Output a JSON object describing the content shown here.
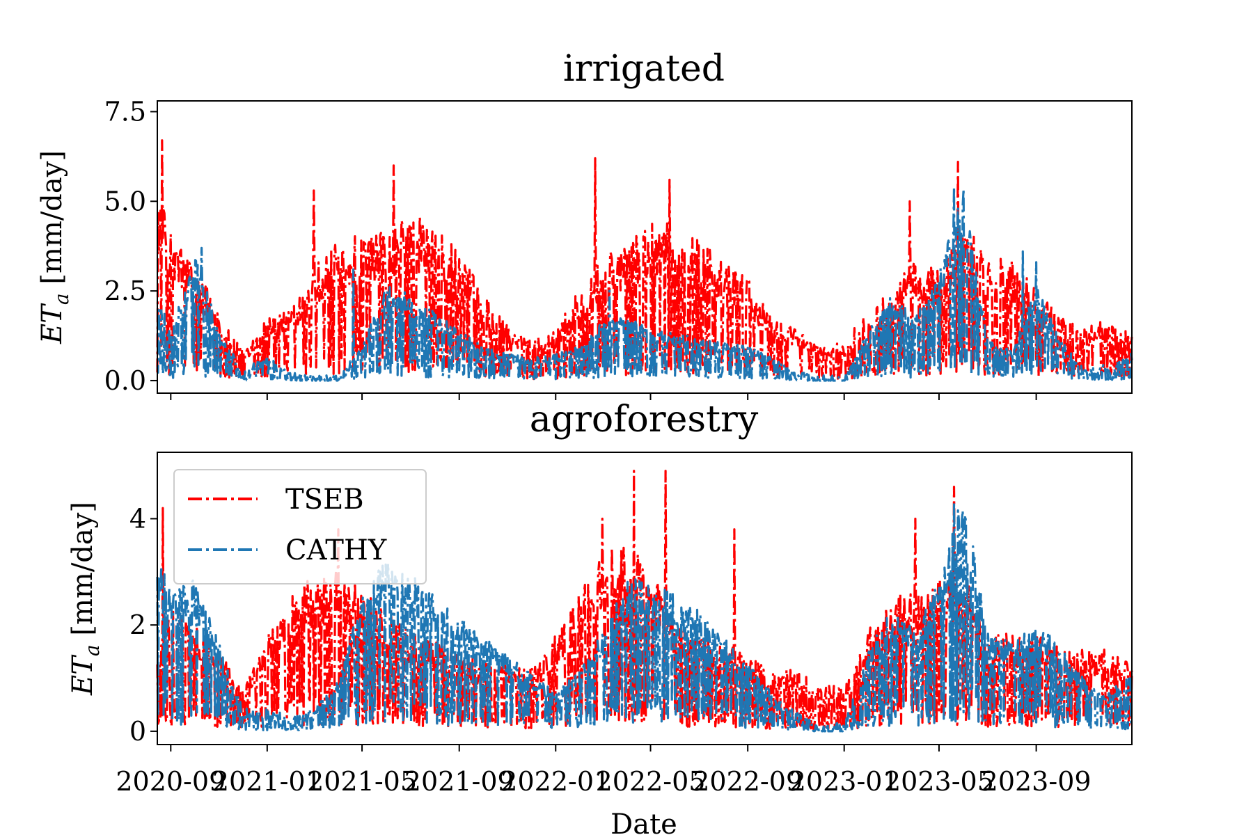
{
  "x_tick_labels": [
    "2020-09",
    "2021-01",
    "2021-05",
    "2021-09",
    "2022-01",
    "2022-05",
    "2022-09",
    "2023-01",
    "2023-05",
    "2023-09"
  ],
  "colors": {
    "TSEB": "#ff0000",
    "CATHY": "#1f77b4"
  },
  "chart_data": [
    {
      "type": "line",
      "title": "irrigated",
      "xlabel": "",
      "ylabel": "ET_a [mm/day]",
      "ylabel_main": "ET",
      "ylabel_sub": "a",
      "ylabel_rest": " [mm/day]",
      "x_range": [
        "2020-08-15",
        "2023-12-31"
      ],
      "ylim": [
        -0.35,
        7.8
      ],
      "yticks": [
        0.0,
        2.5,
        5.0,
        7.5
      ],
      "ytick_labels": [
        "0.0",
        "2.5",
        "5.0",
        "7.5"
      ],
      "grid": false,
      "legend": "none",
      "series": [
        {
          "name": "TSEB",
          "x": [
            "2020-08-15",
            "2020-09-01",
            "2020-10-01",
            "2020-11-01",
            "2020-12-01",
            "2021-01-01",
            "2021-02-01",
            "2021-03-01",
            "2021-04-01",
            "2021-05-01",
            "2021-06-01",
            "2021-07-01",
            "2021-08-01",
            "2021-09-01",
            "2021-10-01",
            "2021-11-01",
            "2021-12-01",
            "2022-01-01",
            "2022-02-01",
            "2022-03-01",
            "2022-04-01",
            "2022-05-01",
            "2022-06-01",
            "2022-07-01",
            "2022-08-01",
            "2022-09-01",
            "2022-10-01",
            "2022-11-01",
            "2022-12-01",
            "2023-01-01",
            "2023-02-01",
            "2023-03-01",
            "2023-04-01",
            "2023-05-01",
            "2023-06-01",
            "2023-07-01",
            "2023-08-01",
            "2023-09-01",
            "2023-10-01",
            "2023-11-01",
            "2023-12-01",
            "2023-12-31"
          ],
          "values": [
            4.2,
            3.2,
            2.5,
            1.6,
            0.6,
            1.4,
            1.6,
            2.5,
            3.0,
            3.2,
            3.2,
            3.7,
            3.3,
            2.8,
            1.9,
            1.2,
            0.9,
            1.1,
            2.0,
            2.7,
            3.0,
            3.5,
            3.5,
            3.0,
            2.6,
            2.2,
            1.4,
            1.1,
            0.8,
            0.8,
            1.6,
            2.0,
            2.6,
            2.4,
            3.4,
            2.8,
            2.6,
            2.0,
            1.4,
            1.2,
            1.3,
            1.0
          ],
          "peaks": [
            {
              "x": "2020-08-21",
              "y": 6.7
            },
            {
              "x": "2021-03-01",
              "y": 5.3
            },
            {
              "x": "2021-06-10",
              "y": 6.0
            },
            {
              "x": "2022-02-20",
              "y": 6.2
            },
            {
              "x": "2022-05-25",
              "y": 5.6
            },
            {
              "x": "2023-03-25",
              "y": 5.0
            },
            {
              "x": "2023-05-25",
              "y": 6.1
            }
          ]
        },
        {
          "name": "CATHY",
          "x": [
            "2020-08-15",
            "2020-09-01",
            "2020-10-01",
            "2020-11-01",
            "2020-12-01",
            "2021-01-01",
            "2021-02-01",
            "2021-03-01",
            "2021-04-01",
            "2021-05-01",
            "2021-06-01",
            "2021-07-01",
            "2021-08-01",
            "2021-09-01",
            "2021-10-01",
            "2021-11-01",
            "2021-12-01",
            "2022-01-01",
            "2022-02-01",
            "2022-03-01",
            "2022-04-01",
            "2022-05-01",
            "2022-06-01",
            "2022-07-01",
            "2022-08-01",
            "2022-09-01",
            "2022-10-01",
            "2022-11-01",
            "2022-12-01",
            "2023-01-01",
            "2023-02-01",
            "2023-03-01",
            "2023-04-01",
            "2023-05-01",
            "2023-06-01",
            "2023-07-01",
            "2023-08-01",
            "2023-09-01",
            "2023-10-01",
            "2023-11-01",
            "2023-12-01",
            "2023-12-31"
          ],
          "values": [
            2.0,
            1.2,
            3.0,
            1.2,
            0.2,
            0.5,
            0.1,
            0.0,
            0.0,
            0.8,
            2.3,
            2.0,
            1.6,
            1.2,
            0.8,
            0.6,
            0.5,
            0.6,
            0.8,
            1.4,
            1.5,
            1.2,
            1.1,
            1.0,
            0.9,
            0.8,
            0.5,
            0.1,
            0.0,
            0.0,
            1.2,
            2.0,
            1.5,
            2.5,
            4.5,
            1.0,
            0.7,
            2.3,
            1.0,
            0.2,
            0.3,
            0.6
          ],
          "peaks": [
            {
              "x": "2020-10-10",
              "y": 3.7
            },
            {
              "x": "2021-04-20",
              "y": 3.1
            },
            {
              "x": "2022-03-10",
              "y": 2.5
            },
            {
              "x": "2023-05-20",
              "y": 5.4
            },
            {
              "x": "2023-08-15",
              "y": 3.6
            },
            {
              "x": "2023-09-01",
              "y": 3.3
            }
          ]
        }
      ]
    },
    {
      "type": "line",
      "title": "agroforestry",
      "xlabel": "Date",
      "ylabel": "ET_a [mm/day]",
      "ylabel_main": "ET",
      "ylabel_sub": "a",
      "ylabel_rest": " [mm/day]",
      "x_range": [
        "2020-08-15",
        "2023-12-31"
      ],
      "ylim": [
        -0.25,
        5.25
      ],
      "yticks": [
        0,
        2,
        4
      ],
      "ytick_labels": [
        "0",
        "2",
        "4"
      ],
      "grid": false,
      "legend": "upper left",
      "series": [
        {
          "name": "TSEB",
          "x": [
            "2020-08-15",
            "2020-09-01",
            "2020-10-01",
            "2020-11-01",
            "2020-12-01",
            "2021-01-01",
            "2021-02-01",
            "2021-03-01",
            "2021-04-01",
            "2021-05-01",
            "2021-06-01",
            "2021-07-01",
            "2021-08-01",
            "2021-09-01",
            "2021-10-01",
            "2021-11-01",
            "2021-12-01",
            "2022-01-01",
            "2022-02-01",
            "2022-03-01",
            "2022-04-01",
            "2022-05-01",
            "2022-06-01",
            "2022-07-01",
            "2022-08-01",
            "2022-09-01",
            "2022-10-01",
            "2022-11-01",
            "2022-12-01",
            "2023-01-01",
            "2023-02-01",
            "2023-03-01",
            "2023-04-01",
            "2023-05-01",
            "2023-06-01",
            "2023-07-01",
            "2023-08-01",
            "2023-09-01",
            "2023-10-01",
            "2023-11-01",
            "2023-12-01",
            "2023-12-31"
          ],
          "values": [
            1.2,
            1.8,
            1.6,
            1.2,
            0.6,
            1.4,
            2.0,
            2.3,
            2.4,
            2.1,
            1.8,
            1.5,
            1.3,
            1.2,
            1.0,
            1.0,
            0.9,
            1.4,
            2.1,
            2.6,
            2.8,
            2.4,
            1.6,
            1.4,
            1.3,
            1.1,
            0.9,
            0.9,
            0.7,
            0.6,
            1.5,
            2.0,
            2.1,
            2.2,
            2.4,
            1.5,
            1.4,
            1.4,
            1.3,
            1.2,
            1.2,
            1.0
          ],
          "peaks": [
            {
              "x": "2020-08-22",
              "y": 4.2
            },
            {
              "x": "2021-04-01",
              "y": 3.8
            },
            {
              "x": "2022-03-01",
              "y": 4.0
            },
            {
              "x": "2022-04-10",
              "y": 4.9
            },
            {
              "x": "2022-05-20",
              "y": 4.9
            },
            {
              "x": "2022-08-15",
              "y": 3.8
            },
            {
              "x": "2023-04-01",
              "y": 4.0
            },
            {
              "x": "2023-05-20",
              "y": 4.6
            }
          ]
        },
        {
          "name": "CATHY",
          "x": [
            "2020-08-15",
            "2020-09-01",
            "2020-10-01",
            "2020-11-01",
            "2020-12-01",
            "2021-01-01",
            "2021-02-01",
            "2021-03-01",
            "2021-04-01",
            "2021-05-01",
            "2021-06-01",
            "2021-07-01",
            "2021-08-01",
            "2021-09-01",
            "2021-10-01",
            "2021-11-01",
            "2021-12-01",
            "2022-01-01",
            "2022-02-01",
            "2022-03-01",
            "2022-04-01",
            "2022-05-01",
            "2022-06-01",
            "2022-07-01",
            "2022-08-01",
            "2022-09-01",
            "2022-10-01",
            "2022-11-01",
            "2022-12-01",
            "2023-01-01",
            "2023-02-01",
            "2023-03-01",
            "2023-04-01",
            "2023-05-01",
            "2023-06-01",
            "2023-07-01",
            "2023-08-01",
            "2023-09-01",
            "2023-10-01",
            "2023-11-01",
            "2023-12-01",
            "2023-12-31"
          ],
          "values": [
            3.0,
            2.2,
            2.4,
            1.4,
            0.3,
            0.3,
            0.1,
            0.3,
            0.8,
            2.2,
            2.7,
            2.5,
            2.2,
            1.8,
            1.5,
            1.2,
            0.9,
            0.6,
            1.0,
            1.6,
            2.4,
            2.4,
            2.2,
            1.9,
            1.5,
            1.1,
            0.6,
            0.2,
            0.0,
            0.0,
            1.3,
            2.0,
            1.6,
            2.4,
            3.8,
            1.6,
            1.4,
            1.8,
            1.4,
            0.8,
            0.6,
            0.9
          ],
          "peaks": [
            {
              "x": "2020-08-20",
              "y": 3.1
            },
            {
              "x": "2021-06-01",
              "y": 2.8
            },
            {
              "x": "2022-04-20",
              "y": 2.8
            },
            {
              "x": "2023-05-20",
              "y": 4.3
            }
          ]
        }
      ]
    }
  ]
}
